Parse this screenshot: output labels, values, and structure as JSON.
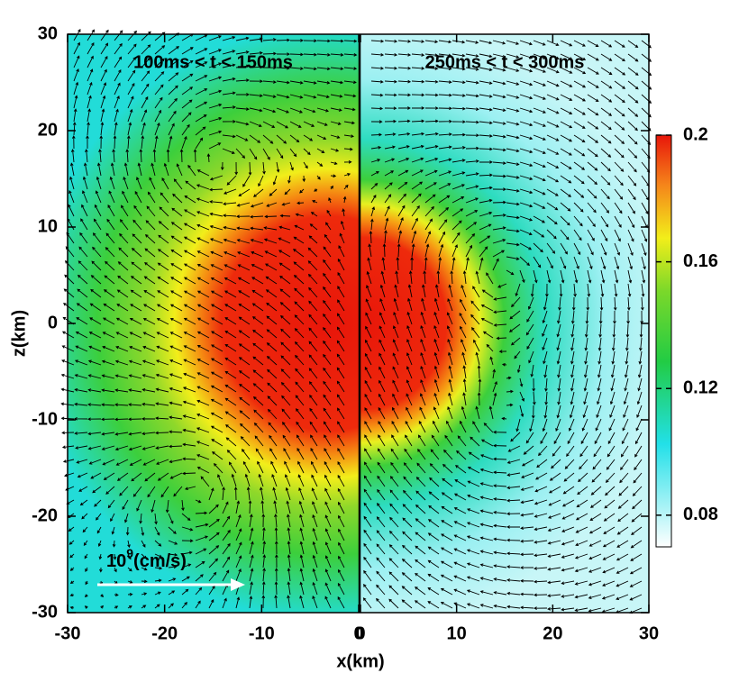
{
  "chart_data": {
    "type": "heatmap",
    "x_label": "x(km)",
    "y_label": "z(km)",
    "ylim": [
      30,
      -30
    ],
    "yticks": [
      30,
      20,
      10,
      0,
      -10,
      -20,
      -30
    ],
    "panels": [
      {
        "title": "100ms < t < 150ms",
        "xlim": [
          -30,
          0
        ],
        "xticks": [
          -30,
          -20,
          -10,
          0
        ]
      },
      {
        "title": "250ms < t < 300ms",
        "xlim": [
          0,
          30
        ],
        "xticks": [
          0,
          10,
          20,
          30
        ]
      }
    ],
    "colorbar": {
      "clim": [
        0.07,
        0.2
      ],
      "ticks": [
        0.2,
        0.16,
        0.12,
        0.08
      ]
    },
    "scale_arrow_label": {
      "base": "10",
      "exponent": "9",
      "unit": "(cm/s)"
    }
  }
}
